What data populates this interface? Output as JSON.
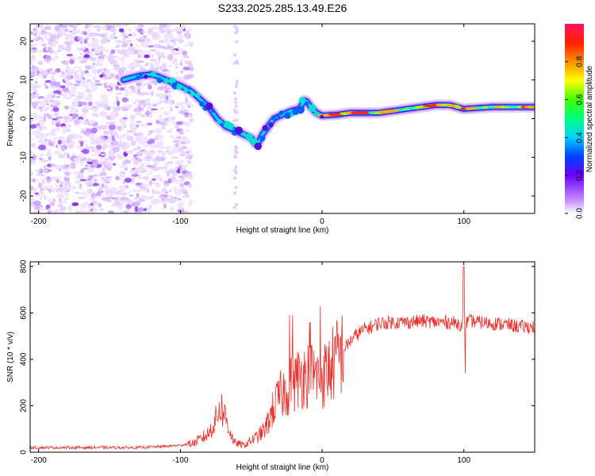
{
  "title": "S233.2025.285.13.49.E26",
  "chart_data": [
    {
      "type": "heatmap",
      "xlabel": "Height of straight line (km)",
      "ylabel": "Frequency (Hz)",
      "xlim": [
        -206,
        150
      ],
      "ylim": [
        -24.5,
        24.5
      ],
      "xticks": [
        -200,
        -100,
        0,
        100
      ],
      "yticks": [
        -20,
        -10,
        0,
        10,
        20
      ],
      "ridge_x": [
        -140,
        -130,
        -120,
        -110,
        -100,
        -92,
        -86,
        -80,
        -74,
        -68,
        -62,
        -56,
        -50,
        -46,
        -42,
        -38,
        -34,
        -28,
        -22,
        -16,
        -12,
        -8,
        -4,
        0,
        10,
        20,
        40,
        60,
        80,
        90,
        100,
        120,
        140,
        150
      ],
      "ridge_y": [
        10,
        11,
        11.5,
        10,
        8.5,
        7,
        5,
        3,
        0,
        -2,
        -3,
        -4,
        -5,
        -7,
        -4,
        -2,
        0,
        1,
        2,
        2.5,
        5,
        3,
        1.5,
        0.8,
        1,
        1.5,
        1.5,
        2.5,
        3.5,
        3.5,
        2.5,
        3,
        3,
        3
      ],
      "colorbar": {
        "label": "Normalized spectral amplitude",
        "range": [
          0,
          1
        ],
        "ticks": [
          "0.0",
          "0.2",
          "0.4",
          "0.6",
          "0.8"
        ]
      }
    },
    {
      "type": "line",
      "xlabel": "Height of straight line (km)",
      "ylabel": "SNR (10 * v/v)",
      "xlim": [
        -206,
        150
      ],
      "ylim": [
        0,
        820
      ],
      "xticks": [
        -200,
        -100,
        0,
        100
      ],
      "yticks": [
        0,
        200,
        400,
        600,
        800
      ],
      "color": "#e8322e",
      "series": [
        {
          "name": "SNR",
          "x": [
            -206,
            -190,
            -170,
            -150,
            -130,
            -110,
            -100,
            -90,
            -85,
            -80,
            -75,
            -72,
            -68,
            -65,
            -62,
            -58,
            -55,
            -50,
            -45,
            -40,
            -35,
            -30,
            -25,
            -20,
            -15,
            -10,
            -5,
            0,
            5,
            10,
            15,
            20,
            25,
            30,
            35,
            40,
            50,
            60,
            70,
            80,
            90,
            95,
            100,
            101,
            102,
            105,
            110,
            120,
            130,
            140,
            150
          ],
          "y": [
            20,
            20,
            20,
            20,
            20,
            25,
            30,
            40,
            60,
            80,
            140,
            200,
            150,
            90,
            40,
            35,
            30,
            50,
            70,
            100,
            180,
            240,
            270,
            300,
            330,
            340,
            330,
            320,
            360,
            400,
            440,
            480,
            510,
            530,
            540,
            555,
            560,
            560,
            565,
            560,
            560,
            555,
            550,
            550,
            560,
            565,
            560,
            555,
            550,
            540,
            540
          ]
        }
      ]
    }
  ]
}
